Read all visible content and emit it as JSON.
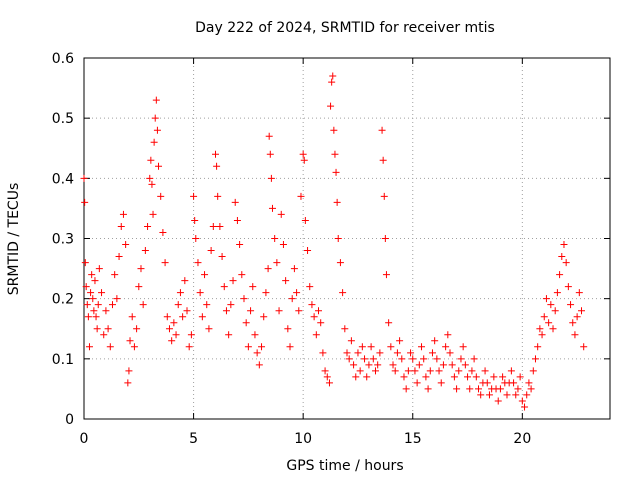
{
  "chart_data": {
    "type": "scatter",
    "title": "Day 222 of 2024, SRMTID for receiver mtis",
    "xlabel": "GPS time / hours",
    "ylabel": "SRMTID / TECUs",
    "xlim": [
      0,
      24
    ],
    "ylim": [
      0,
      0.6
    ],
    "xticks": [
      0,
      5,
      10,
      15,
      20
    ],
    "yticks": [
      0,
      0.1,
      0.2,
      0.3,
      0.4,
      0.5,
      0.6
    ],
    "xtick_labels": [
      "0",
      "5",
      "10",
      "15",
      "20"
    ],
    "ytick_labels": [
      "0",
      "0.1",
      "0.2",
      "0.3",
      "0.4",
      "0.5",
      "0.6"
    ],
    "grid": true,
    "marker": "+",
    "color": "#ff0000",
    "series": [
      {
        "name": "SRMTID",
        "points": [
          [
            0.0,
            0.4
          ],
          [
            0.03,
            0.36
          ],
          [
            0.06,
            0.26
          ],
          [
            0.1,
            0.22
          ],
          [
            0.15,
            0.19
          ],
          [
            0.2,
            0.17
          ],
          [
            0.25,
            0.12
          ],
          [
            0.3,
            0.21
          ],
          [
            0.35,
            0.24
          ],
          [
            0.4,
            0.2
          ],
          [
            0.45,
            0.18
          ],
          [
            0.5,
            0.23
          ],
          [
            0.55,
            0.17
          ],
          [
            0.6,
            0.15
          ],
          [
            0.65,
            0.19
          ],
          [
            0.7,
            0.25
          ],
          [
            0.8,
            0.21
          ],
          [
            0.9,
            0.14
          ],
          [
            1.0,
            0.18
          ],
          [
            1.1,
            0.15
          ],
          [
            1.2,
            0.12
          ],
          [
            1.3,
            0.19
          ],
          [
            1.4,
            0.24
          ],
          [
            1.5,
            0.2
          ],
          [
            1.6,
            0.27
          ],
          [
            1.7,
            0.32
          ],
          [
            1.8,
            0.34
          ],
          [
            1.9,
            0.29
          ],
          [
            2.0,
            0.06
          ],
          [
            2.05,
            0.08
          ],
          [
            2.1,
            0.13
          ],
          [
            2.2,
            0.17
          ],
          [
            2.3,
            0.12
          ],
          [
            2.4,
            0.15
          ],
          [
            2.5,
            0.22
          ],
          [
            2.6,
            0.25
          ],
          [
            2.7,
            0.19
          ],
          [
            2.8,
            0.28
          ],
          [
            2.9,
            0.32
          ],
          [
            3.0,
            0.4
          ],
          [
            3.05,
            0.43
          ],
          [
            3.1,
            0.39
          ],
          [
            3.15,
            0.34
          ],
          [
            3.2,
            0.46
          ],
          [
            3.25,
            0.5
          ],
          [
            3.3,
            0.53
          ],
          [
            3.35,
            0.48
          ],
          [
            3.4,
            0.42
          ],
          [
            3.5,
            0.37
          ],
          [
            3.6,
            0.31
          ],
          [
            3.7,
            0.26
          ],
          [
            3.8,
            0.17
          ],
          [
            3.9,
            0.15
          ],
          [
            4.0,
            0.13
          ],
          [
            4.1,
            0.16
          ],
          [
            4.2,
            0.14
          ],
          [
            4.3,
            0.19
          ],
          [
            4.4,
            0.21
          ],
          [
            4.5,
            0.17
          ],
          [
            4.6,
            0.23
          ],
          [
            4.7,
            0.18
          ],
          [
            4.8,
            0.12
          ],
          [
            4.9,
            0.14
          ],
          [
            5.0,
            0.37
          ],
          [
            5.05,
            0.33
          ],
          [
            5.1,
            0.3
          ],
          [
            5.2,
            0.26
          ],
          [
            5.3,
            0.21
          ],
          [
            5.4,
            0.17
          ],
          [
            5.5,
            0.24
          ],
          [
            5.6,
            0.19
          ],
          [
            5.7,
            0.15
          ],
          [
            5.8,
            0.28
          ],
          [
            5.9,
            0.32
          ],
          [
            6.0,
            0.44
          ],
          [
            6.05,
            0.42
          ],
          [
            6.1,
            0.37
          ],
          [
            6.2,
            0.32
          ],
          [
            6.3,
            0.27
          ],
          [
            6.4,
            0.22
          ],
          [
            6.5,
            0.18
          ],
          [
            6.6,
            0.14
          ],
          [
            6.7,
            0.19
          ],
          [
            6.8,
            0.23
          ],
          [
            6.9,
            0.36
          ],
          [
            7.0,
            0.33
          ],
          [
            7.1,
            0.29
          ],
          [
            7.2,
            0.24
          ],
          [
            7.3,
            0.2
          ],
          [
            7.4,
            0.16
          ],
          [
            7.5,
            0.12
          ],
          [
            7.6,
            0.18
          ],
          [
            7.7,
            0.22
          ],
          [
            7.8,
            0.14
          ],
          [
            7.9,
            0.11
          ],
          [
            8.0,
            0.09
          ],
          [
            8.1,
            0.12
          ],
          [
            8.2,
            0.17
          ],
          [
            8.3,
            0.21
          ],
          [
            8.4,
            0.25
          ],
          [
            8.45,
            0.47
          ],
          [
            8.5,
            0.44
          ],
          [
            8.55,
            0.4
          ],
          [
            8.6,
            0.35
          ],
          [
            8.7,
            0.3
          ],
          [
            8.8,
            0.26
          ],
          [
            8.9,
            0.18
          ],
          [
            9.0,
            0.34
          ],
          [
            9.1,
            0.29
          ],
          [
            9.2,
            0.23
          ],
          [
            9.3,
            0.15
          ],
          [
            9.4,
            0.12
          ],
          [
            9.5,
            0.2
          ],
          [
            9.6,
            0.25
          ],
          [
            9.7,
            0.21
          ],
          [
            9.8,
            0.18
          ],
          [
            9.9,
            0.37
          ],
          [
            10.0,
            0.44
          ],
          [
            10.05,
            0.43
          ],
          [
            10.1,
            0.33
          ],
          [
            10.2,
            0.28
          ],
          [
            10.3,
            0.22
          ],
          [
            10.4,
            0.19
          ],
          [
            10.5,
            0.17
          ],
          [
            10.6,
            0.14
          ],
          [
            10.7,
            0.18
          ],
          [
            10.8,
            0.16
          ],
          [
            10.9,
            0.11
          ],
          [
            11.0,
            0.08
          ],
          [
            11.1,
            0.07
          ],
          [
            11.2,
            0.06
          ],
          [
            11.25,
            0.52
          ],
          [
            11.3,
            0.56
          ],
          [
            11.35,
            0.57
          ],
          [
            11.4,
            0.48
          ],
          [
            11.45,
            0.44
          ],
          [
            11.5,
            0.41
          ],
          [
            11.55,
            0.36
          ],
          [
            11.6,
            0.3
          ],
          [
            11.7,
            0.26
          ],
          [
            11.8,
            0.21
          ],
          [
            11.9,
            0.15
          ],
          [
            12.0,
            0.11
          ],
          [
            12.1,
            0.1
          ],
          [
            12.2,
            0.13
          ],
          [
            12.3,
            0.09
          ],
          [
            12.4,
            0.07
          ],
          [
            12.5,
            0.11
          ],
          [
            12.6,
            0.08
          ],
          [
            12.7,
            0.12
          ],
          [
            12.8,
            0.1
          ],
          [
            12.9,
            0.07
          ],
          [
            13.0,
            0.09
          ],
          [
            13.1,
            0.12
          ],
          [
            13.2,
            0.1
          ],
          [
            13.3,
            0.08
          ],
          [
            13.4,
            0.09
          ],
          [
            13.5,
            0.11
          ],
          [
            13.6,
            0.48
          ],
          [
            13.65,
            0.43
          ],
          [
            13.7,
            0.37
          ],
          [
            13.75,
            0.3
          ],
          [
            13.8,
            0.24
          ],
          [
            13.9,
            0.16
          ],
          [
            14.0,
            0.12
          ],
          [
            14.1,
            0.09
          ],
          [
            14.2,
            0.08
          ],
          [
            14.3,
            0.11
          ],
          [
            14.4,
            0.13
          ],
          [
            14.5,
            0.1
          ],
          [
            14.6,
            0.07
          ],
          [
            14.7,
            0.05
          ],
          [
            14.8,
            0.08
          ],
          [
            14.9,
            0.11
          ],
          [
            15.0,
            0.1
          ],
          [
            15.1,
            0.08
          ],
          [
            15.2,
            0.06
          ],
          [
            15.3,
            0.09
          ],
          [
            15.4,
            0.12
          ],
          [
            15.5,
            0.1
          ],
          [
            15.6,
            0.07
          ],
          [
            15.7,
            0.05
          ],
          [
            15.8,
            0.08
          ],
          [
            15.9,
            0.11
          ],
          [
            16.0,
            0.13
          ],
          [
            16.1,
            0.1
          ],
          [
            16.2,
            0.08
          ],
          [
            16.3,
            0.06
          ],
          [
            16.4,
            0.09
          ],
          [
            16.5,
            0.12
          ],
          [
            16.6,
            0.14
          ],
          [
            16.7,
            0.11
          ],
          [
            16.8,
            0.09
          ],
          [
            16.9,
            0.07
          ],
          [
            17.0,
            0.05
          ],
          [
            17.1,
            0.08
          ],
          [
            17.2,
            0.1
          ],
          [
            17.3,
            0.12
          ],
          [
            17.4,
            0.09
          ],
          [
            17.5,
            0.07
          ],
          [
            17.6,
            0.05
          ],
          [
            17.7,
            0.08
          ],
          [
            17.8,
            0.1
          ],
          [
            17.9,
            0.07
          ],
          [
            18.0,
            0.05
          ],
          [
            18.1,
            0.04
          ],
          [
            18.2,
            0.06
          ],
          [
            18.3,
            0.08
          ],
          [
            18.4,
            0.06
          ],
          [
            18.5,
            0.04
          ],
          [
            18.6,
            0.05
          ],
          [
            18.7,
            0.07
          ],
          [
            18.8,
            0.05
          ],
          [
            18.9,
            0.03
          ],
          [
            19.0,
            0.05
          ],
          [
            19.1,
            0.07
          ],
          [
            19.2,
            0.06
          ],
          [
            19.3,
            0.04
          ],
          [
            19.4,
            0.06
          ],
          [
            19.5,
            0.08
          ],
          [
            19.6,
            0.06
          ],
          [
            19.7,
            0.04
          ],
          [
            19.8,
            0.05
          ],
          [
            19.9,
            0.07
          ],
          [
            20.0,
            0.03
          ],
          [
            20.1,
            0.02
          ],
          [
            20.2,
            0.04
          ],
          [
            20.3,
            0.06
          ],
          [
            20.4,
            0.05
          ],
          [
            20.5,
            0.08
          ],
          [
            20.6,
            0.1
          ],
          [
            20.7,
            0.12
          ],
          [
            20.8,
            0.15
          ],
          [
            20.9,
            0.14
          ],
          [
            21.0,
            0.17
          ],
          [
            21.1,
            0.2
          ],
          [
            21.2,
            0.16
          ],
          [
            21.3,
            0.19
          ],
          [
            21.4,
            0.15
          ],
          [
            21.5,
            0.18
          ],
          [
            21.6,
            0.21
          ],
          [
            21.7,
            0.24
          ],
          [
            21.8,
            0.27
          ],
          [
            21.9,
            0.29
          ],
          [
            22.0,
            0.26
          ],
          [
            22.1,
            0.22
          ],
          [
            22.2,
            0.19
          ],
          [
            22.3,
            0.16
          ],
          [
            22.4,
            0.14
          ],
          [
            22.5,
            0.17
          ],
          [
            22.6,
            0.21
          ],
          [
            22.7,
            0.18
          ],
          [
            22.8,
            0.12
          ]
        ]
      }
    ]
  }
}
